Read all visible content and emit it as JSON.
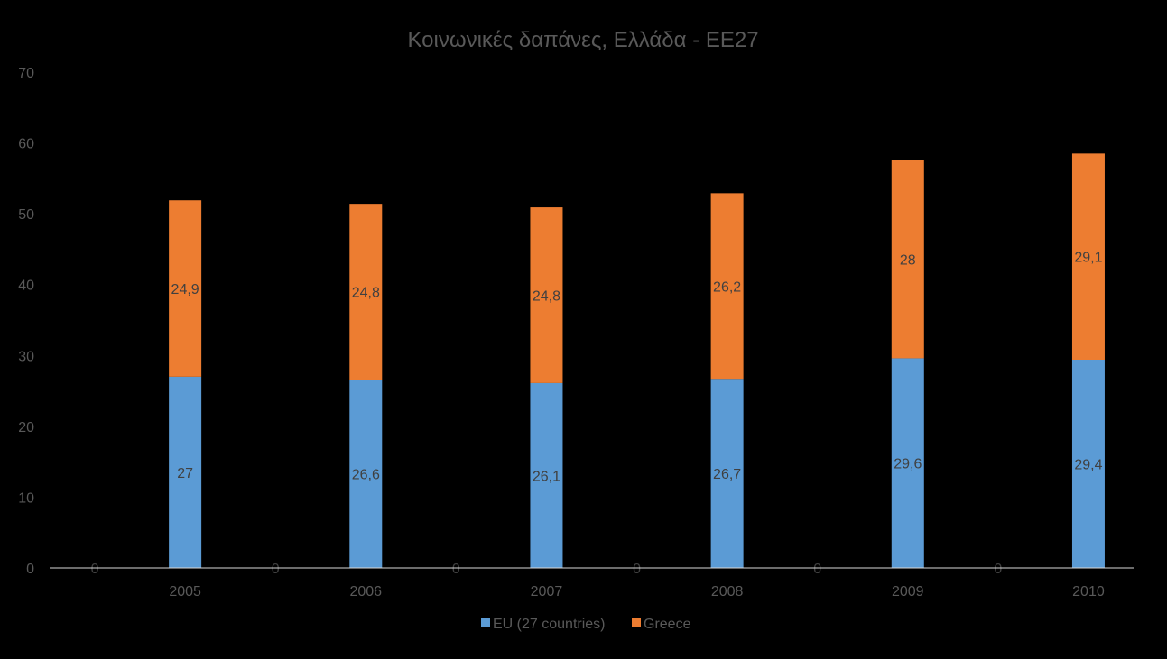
{
  "chart_data": {
    "type": "bar",
    "stacked": true,
    "title": "Κοινωνικές δαπάνες, Ελλάδα - ΕΕ27",
    "xlabel": "",
    "ylabel": "",
    "ylim": [
      0,
      70
    ],
    "y_ticks": [
      "0",
      "10",
      "20",
      "30",
      "40",
      "50",
      "60",
      "70"
    ],
    "grid": false,
    "legend_position": "bottom",
    "categories": [
      "2005",
      "2006",
      "2007",
      "2008",
      "2009",
      "2010"
    ],
    "series": [
      {
        "name": "EU (27 countries)",
        "color": "#5B9BD5",
        "values": [
          27,
          26.6,
          26.1,
          26.7,
          29.6,
          29.4
        ],
        "labels": [
          "27",
          "26,6",
          "26,1",
          "26,7",
          "29,6",
          "29,4"
        ]
      },
      {
        "name": "Greece",
        "color": "#ED7D31",
        "values": [
          24.9,
          24.8,
          24.8,
          26.2,
          28,
          29.1
        ],
        "labels": [
          "24,9",
          "24,8",
          "24,8",
          "26,2",
          "28",
          "29,1"
        ]
      }
    ],
    "zero_labels": [
      "0",
      "0",
      "0",
      "0",
      "0",
      "0"
    ]
  }
}
